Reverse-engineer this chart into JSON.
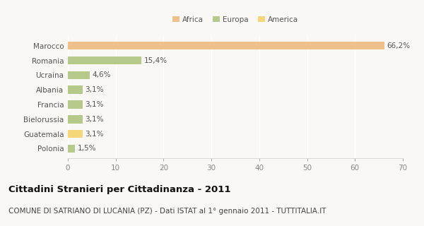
{
  "categories": [
    "Marocco",
    "Romania",
    "Ucraina",
    "Albania",
    "Francia",
    "Bielorussia",
    "Guatemala",
    "Polonia"
  ],
  "values": [
    66.2,
    15.4,
    4.6,
    3.1,
    3.1,
    3.1,
    3.1,
    1.5
  ],
  "labels": [
    "66,2%",
    "15,4%",
    "4,6%",
    "3,1%",
    "3,1%",
    "3,1%",
    "3,1%",
    "1,5%"
  ],
  "colors": [
    "#f0c08c",
    "#b5c98a",
    "#b5c98a",
    "#b5c98a",
    "#b5c98a",
    "#b5c98a",
    "#f5d77a",
    "#b5c98a"
  ],
  "legend": [
    {
      "label": "Africa",
      "color": "#f0c08c"
    },
    {
      "label": "Europa",
      "color": "#b5c98a"
    },
    {
      "label": "America",
      "color": "#f5d77a"
    }
  ],
  "xlim": [
    0,
    70
  ],
  "xticks": [
    0,
    10,
    20,
    30,
    40,
    50,
    60,
    70
  ],
  "title": "Cittadini Stranieri per Cittadinanza - 2011",
  "subtitle": "COMUNE DI SATRIANO DI LUCANIA (PZ) - Dati ISTAT al 1° gennaio 2011 - TUTTITALIA.IT",
  "background_color": "#faf8f4",
  "grid_color": "#ffffff",
  "bar_height": 0.55,
  "title_fontsize": 9.5,
  "subtitle_fontsize": 7.5,
  "label_fontsize": 7.5,
  "tick_fontsize": 7.5
}
